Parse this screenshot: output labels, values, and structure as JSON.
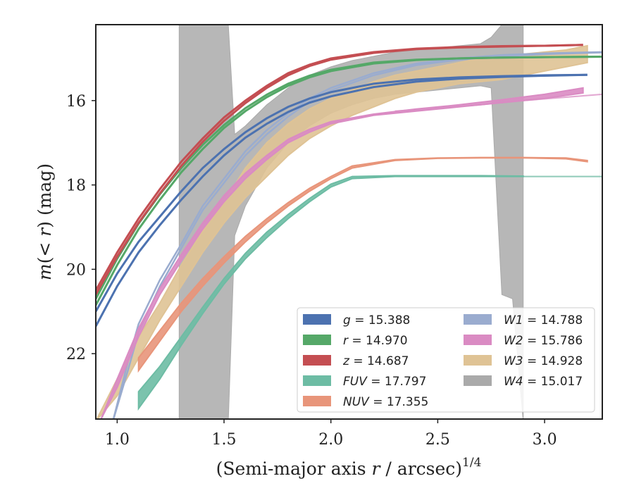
{
  "chart_data": {
    "type": "line",
    "xlabel": "(Semi-major axis r / arcsec)",
    "xlabel_prefix": "(Semi-major axis ",
    "xlabel_italic": "r",
    "xlabel_suffix": " / arcsec)",
    "xlabel_exponent": "1/4",
    "ylabel_prefix": "m(< ",
    "ylabel_italic": "r",
    "ylabel_suffix": ") (mag)",
    "xlim": [
      0.9,
      3.27
    ],
    "ylim": [
      23.55,
      14.2
    ],
    "y_inverted": true,
    "xticks": [
      1.0,
      1.5,
      2.0,
      2.5,
      3.0
    ],
    "xtick_labels": [
      "1.0",
      "1.5",
      "2.0",
      "2.5",
      "3.0"
    ],
    "yticks": [
      16,
      18,
      20,
      22
    ],
    "ytick_labels": [
      "16",
      "18",
      "20",
      "22"
    ],
    "legend_position": "lower-right",
    "legend": [
      {
        "name": "g",
        "value": "15.388",
        "color": "#4c72b0"
      },
      {
        "name": "r",
        "value": "14.970",
        "color": "#55a868"
      },
      {
        "name": "z",
        "value": "14.687",
        "color": "#c44e52"
      },
      {
        "name": "FUV",
        "value": "17.797",
        "color": "#6dbca4"
      },
      {
        "name": "NUV",
        "value": "17.355",
        "color": "#e8957a"
      },
      {
        "name": "W1",
        "value": "14.788",
        "color": "#9aaccf"
      },
      {
        "name": "W2",
        "value": "15.786",
        "color": "#da8bc3"
      },
      {
        "name": "W3",
        "value": "14.928",
        "color": "#dfc395"
      },
      {
        "name": "W4",
        "value": "15.017",
        "color": "#aaaaaa"
      }
    ],
    "series": [
      {
        "name": "g",
        "color": "#4c72b0",
        "band": false,
        "width": 3,
        "x": [
          0.9,
          1.0,
          1.1,
          1.2,
          1.3,
          1.4,
          1.5,
          1.6,
          1.7,
          1.8,
          1.9,
          2.0,
          2.2,
          2.4,
          2.6,
          2.8,
          3.0,
          3.2
        ],
        "y": [
          21.0,
          20.1,
          19.35,
          18.75,
          18.15,
          17.6,
          17.15,
          16.75,
          16.42,
          16.15,
          15.95,
          15.8,
          15.6,
          15.5,
          15.45,
          15.42,
          15.4,
          15.39
        ],
        "y2": [
          21.35,
          20.4,
          19.6,
          18.95,
          18.35,
          17.8,
          17.3,
          16.88,
          16.55,
          16.27,
          16.05,
          15.9,
          15.68,
          15.55,
          15.48,
          15.44,
          15.41,
          15.39
        ]
      },
      {
        "name": "r",
        "color": "#55a868",
        "band": false,
        "width": 3,
        "x": [
          0.9,
          1.0,
          1.1,
          1.2,
          1.3,
          1.4,
          1.5,
          1.6,
          1.7,
          1.8,
          1.9,
          2.0,
          2.2,
          2.4,
          2.6,
          2.8,
          3.0,
          3.27
        ],
        "y": [
          20.85,
          19.9,
          19.05,
          18.35,
          17.7,
          17.15,
          16.65,
          16.25,
          15.92,
          15.65,
          15.45,
          15.3,
          15.12,
          15.04,
          15.0,
          14.98,
          14.97,
          14.96
        ],
        "y2": [
          20.7,
          19.75,
          18.92,
          18.22,
          17.6,
          17.05,
          16.58,
          16.18,
          15.86,
          15.6,
          15.41,
          15.27,
          15.1,
          15.03,
          15.0,
          14.98,
          14.97,
          14.96
        ]
      },
      {
        "name": "z",
        "color": "#c44e52",
        "band": false,
        "width": 3,
        "x": [
          0.9,
          1.0,
          1.1,
          1.2,
          1.3,
          1.4,
          1.5,
          1.6,
          1.7,
          1.8,
          1.9,
          2.0,
          2.2,
          2.4,
          2.6,
          2.8,
          3.0,
          3.18
        ],
        "y": [
          20.5,
          19.6,
          18.8,
          18.1,
          17.45,
          16.9,
          16.4,
          16.0,
          15.65,
          15.35,
          15.15,
          15.0,
          14.85,
          14.77,
          14.73,
          14.71,
          14.7,
          14.68
        ],
        "y2": [
          20.6,
          19.7,
          18.9,
          18.2,
          17.55,
          16.98,
          16.48,
          16.06,
          15.7,
          15.4,
          15.18,
          15.03,
          14.87,
          14.78,
          14.74,
          14.72,
          14.7,
          14.68
        ]
      },
      {
        "name": "FUV",
        "color": "#6dbca4",
        "band": true,
        "width": 2,
        "x": [
          1.1,
          1.2,
          1.3,
          1.4,
          1.5,
          1.6,
          1.7,
          1.8,
          1.9,
          2.0,
          2.1,
          2.3,
          2.5,
          2.7,
          2.9
        ],
        "y": [
          23.3,
          22.6,
          21.8,
          21.05,
          20.35,
          19.75,
          19.25,
          18.8,
          18.4,
          18.05,
          17.85,
          17.8,
          17.8,
          17.8,
          17.8
        ],
        "y2": [
          22.9,
          22.3,
          21.6,
          20.9,
          20.22,
          19.62,
          19.12,
          18.7,
          18.32,
          17.98,
          17.8,
          17.78,
          17.78,
          17.78,
          17.79
        ]
      },
      {
        "name": "FUV-ext",
        "color": "#6dbca4",
        "band": false,
        "width": 2,
        "opacity": 0.5,
        "x": [
          2.9,
          3.27
        ],
        "y": [
          17.8,
          17.8
        ],
        "y2": [
          17.8,
          17.8
        ]
      },
      {
        "name": "NUV",
        "color": "#e8957a",
        "band": true,
        "width": 2,
        "x": [
          1.1,
          1.2,
          1.3,
          1.4,
          1.5,
          1.6,
          1.7,
          1.8,
          1.9,
          2.0,
          2.1,
          2.3,
          2.5,
          2.7,
          2.9,
          3.1,
          3.2
        ],
        "y": [
          22.4,
          21.7,
          21.0,
          20.4,
          19.85,
          19.35,
          18.9,
          18.5,
          18.15,
          17.85,
          17.6,
          17.42,
          17.37,
          17.36,
          17.36,
          17.38,
          17.45
        ],
        "y2": [
          22.1,
          21.45,
          20.8,
          20.22,
          19.7,
          19.22,
          18.8,
          18.42,
          18.08,
          17.8,
          17.55,
          17.4,
          17.36,
          17.35,
          17.35,
          17.36,
          17.42
        ]
      },
      {
        "name": "W1",
        "color": "#9aaccf",
        "band": false,
        "width": 2.5,
        "x": [
          0.98,
          1.05,
          1.1,
          1.2,
          1.3,
          1.4,
          1.5,
          1.6,
          1.7,
          1.8,
          1.9,
          2.0,
          2.2,
          2.4,
          2.6,
          2.8,
          3.0,
          3.27
        ],
        "y": [
          23.6,
          22.2,
          21.3,
          20.25,
          19.4,
          18.5,
          17.85,
          17.2,
          16.7,
          16.3,
          15.95,
          15.7,
          15.35,
          15.12,
          15.0,
          14.92,
          14.88,
          14.85
        ],
        "y2": [
          23.6,
          22.4,
          21.5,
          20.4,
          19.5,
          18.6,
          17.95,
          17.3,
          16.8,
          16.38,
          16.02,
          15.76,
          15.4,
          15.16,
          15.03,
          14.95,
          14.9,
          14.86
        ]
      },
      {
        "name": "W2",
        "color": "#da8bc3",
        "band": true,
        "width": 2,
        "x": [
          0.92,
          1.0,
          1.1,
          1.2,
          1.3,
          1.4,
          1.5,
          1.6,
          1.7,
          1.8,
          1.9,
          2.0,
          2.2,
          2.4,
          2.6,
          2.8,
          3.0,
          3.18
        ],
        "y": [
          23.6,
          22.8,
          21.6,
          20.6,
          19.8,
          19.05,
          18.4,
          17.85,
          17.4,
          17.0,
          16.75,
          16.55,
          16.35,
          16.25,
          16.15,
          16.05,
          15.95,
          15.82
        ],
        "y2": [
          23.6,
          22.6,
          21.4,
          20.45,
          19.65,
          18.9,
          18.25,
          17.72,
          17.3,
          16.92,
          16.68,
          16.5,
          16.32,
          16.2,
          16.1,
          15.98,
          15.85,
          15.7
        ]
      },
      {
        "name": "W2-ext",
        "color": "#da8bc3",
        "band": false,
        "width": 2,
        "opacity": 0.5,
        "x": [
          2.3,
          2.5,
          2.7,
          2.9,
          3.1,
          3.27
        ],
        "y": [
          16.25,
          16.18,
          16.1,
          16.0,
          15.92,
          15.85
        ],
        "y2": [
          16.25,
          16.18,
          16.1,
          16.0,
          15.92,
          15.85
        ]
      },
      {
        "name": "W3",
        "color": "#dfc395",
        "band": true,
        "width": 2,
        "x": [
          0.9,
          1.0,
          1.1,
          1.2,
          1.3,
          1.4,
          1.5,
          1.6,
          1.7,
          1.8,
          1.9,
          2.0,
          2.1,
          2.2,
          2.3,
          2.4,
          2.5,
          2.6,
          2.7,
          2.8,
          2.9,
          3.0,
          3.1,
          3.2
        ],
        "y": [
          23.6,
          23.0,
          22.1,
          21.2,
          20.4,
          19.6,
          18.9,
          18.3,
          17.8,
          17.3,
          16.9,
          16.6,
          16.35,
          16.15,
          15.95,
          15.8,
          15.7,
          15.6,
          15.55,
          15.5,
          15.4,
          15.3,
          15.2,
          15.1
        ],
        "y2": [
          23.6,
          22.6,
          21.6,
          20.8,
          19.9,
          19.1,
          18.4,
          17.6,
          17.0,
          16.55,
          16.2,
          15.95,
          15.75,
          15.55,
          15.4,
          15.3,
          15.2,
          15.1,
          15.0,
          14.95,
          14.9,
          14.85,
          14.8,
          14.7
        ]
      },
      {
        "name": "W4",
        "color": "#aaaaaa",
        "band": true,
        "width": 1,
        "x": [
          1.29,
          1.5,
          1.52,
          1.55,
          1.6,
          1.7,
          1.8,
          1.9,
          2.0,
          2.1,
          2.2,
          2.3,
          2.4,
          2.5,
          2.6,
          2.7,
          2.75,
          2.8,
          2.85,
          2.9
        ],
        "y": [
          23.6,
          23.6,
          23.6,
          19.2,
          18.5,
          17.6,
          17.0,
          16.6,
          16.3,
          16.1,
          15.95,
          15.85,
          15.8,
          15.75,
          15.7,
          15.65,
          15.7,
          20.6,
          20.7,
          23.6
        ],
        "y2": [
          14.2,
          14.2,
          14.2,
          16.8,
          16.6,
          16.1,
          15.7,
          15.4,
          15.2,
          15.05,
          14.95,
          14.85,
          14.8,
          14.75,
          14.7,
          14.65,
          14.5,
          14.2,
          14.2,
          14.2
        ]
      }
    ]
  }
}
